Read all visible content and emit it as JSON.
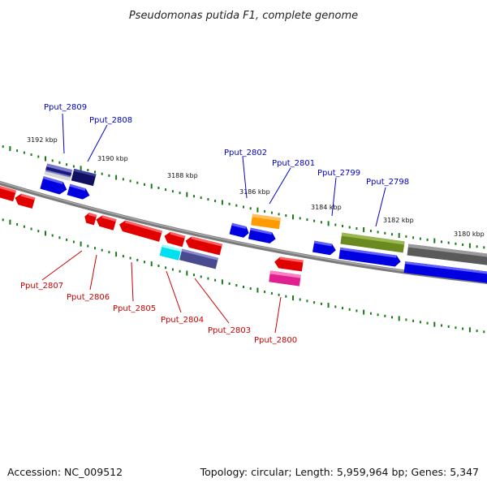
{
  "title": "Pseudomonas putida F1, complete genome",
  "footer": {
    "accession": "Accession: NC_009512",
    "summary": "Topology: circular; Length: 5,959,964 bp; Genes: 5,347"
  },
  "colors": {
    "forward_label": "#0000cc",
    "reverse_label": "#cc0000",
    "tick": "#1a7a1a",
    "backbone": "#808080"
  },
  "scale_labels": [
    "3192 kbp",
    "3190 kbp",
    "3188 kbp",
    "3186 kbp",
    "3184 kbp",
    "3182 kbp",
    "3180 kbp"
  ],
  "gene_labels": {
    "forward": [
      "Pput_2809",
      "Pput_2808",
      "Pput_2802",
      "Pput_2801",
      "Pput_2799",
      "Pput_2798"
    ],
    "reverse": [
      "Pput_2807",
      "Pput_2806",
      "Pput_2805",
      "Pput_2804",
      "Pput_2803",
      "Pput_2800"
    ]
  }
}
